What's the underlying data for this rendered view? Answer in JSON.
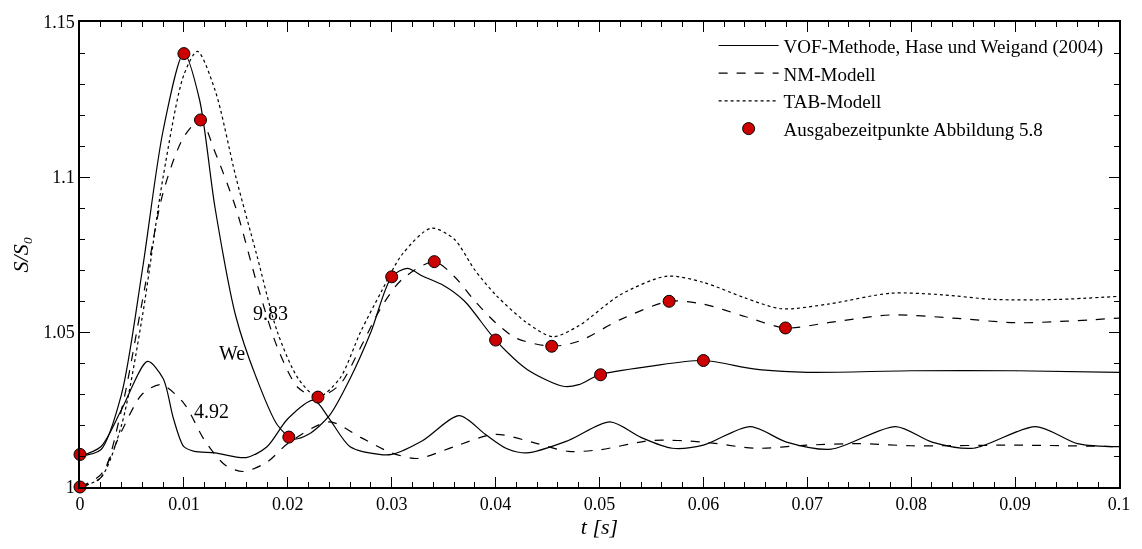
{
  "chart_data": {
    "type": "line",
    "xlabel": "t [s]",
    "ylabel": "S/S₀",
    "xlim": [
      0,
      0.1
    ],
    "xticks": [
      0,
      0.01,
      0.02,
      0.03,
      0.04,
      0.05,
      0.06,
      0.07,
      0.08,
      0.09,
      0.1
    ],
    "ylim": [
      1,
      1.15
    ],
    "yticks": [
      1,
      1.05,
      1.1,
      1.15
    ],
    "legend": "top right",
    "series": [
      {
        "name": "VOF-Methode, Hase und Weigand (2004)",
        "color": "#000000",
        "line_style": "solid",
        "marker": "none",
        "x": [
          0,
          0.002,
          0.004,
          0.006,
          0.008,
          0.01,
          0.0115,
          0.013,
          0.015,
          0.017,
          0.019,
          0.0205,
          0.022,
          0.024,
          0.026,
          0.028,
          0.03,
          0.0315,
          0.033,
          0.035,
          0.037,
          0.04,
          0.043,
          0.0465,
          0.048,
          0.05,
          0.055,
          0.06,
          0.065,
          0.07,
          0.08,
          0.09,
          0.1
        ],
        "values": [
          1.01,
          1.012,
          1.03,
          1.07,
          1.115,
          1.14,
          1.125,
          1.09,
          1.055,
          1.035,
          1.02,
          1.0155,
          1.017,
          1.023,
          1.035,
          1.05,
          1.0678,
          1.0705,
          1.068,
          1.065,
          1.06,
          1.0474,
          1.038,
          1.0325,
          1.033,
          1.0362,
          1.039,
          1.0408,
          1.038,
          1.037,
          1.0375,
          1.0375,
          1.037
        ]
      },
      {
        "name": "NM-Modell",
        "color": "#000000",
        "line_style": "dashed",
        "marker": "none",
        "x": [
          0,
          0.002,
          0.004,
          0.006,
          0.008,
          0.01,
          0.0116,
          0.013,
          0.015,
          0.017,
          0.019,
          0.021,
          0.0229,
          0.025,
          0.027,
          0.029,
          0.031,
          0.0341,
          0.036,
          0.038,
          0.04,
          0.042,
          0.0454,
          0.048,
          0.052,
          0.0567,
          0.06,
          0.064,
          0.0679,
          0.072,
          0.078,
          0.084,
          0.09,
          0.095,
          0.1
        ],
        "values": [
          1.0,
          1.003,
          1.025,
          1.06,
          1.095,
          1.113,
          1.1184,
          1.108,
          1.09,
          1.066,
          1.045,
          1.032,
          1.029,
          1.033,
          1.045,
          1.058,
          1.067,
          1.0727,
          1.068,
          1.06,
          1.053,
          1.048,
          1.0454,
          1.047,
          1.054,
          1.0599,
          1.059,
          1.055,
          1.0513,
          1.053,
          1.0555,
          1.0545,
          1.053,
          1.0535,
          1.0545
        ]
      },
      {
        "name": "TAB-Modell",
        "color": "#000000",
        "line_style": "dotted",
        "marker": "none",
        "x": [
          0,
          0.002,
          0.004,
          0.006,
          0.008,
          0.01,
          0.0113,
          0.013,
          0.015,
          0.017,
          0.019,
          0.021,
          0.0229,
          0.025,
          0.027,
          0.029,
          0.031,
          0.0338,
          0.036,
          0.038,
          0.04,
          0.043,
          0.0455,
          0.048,
          0.052,
          0.0565,
          0.06,
          0.064,
          0.0675,
          0.072,
          0.078,
          0.083,
          0.088,
          0.094,
          0.1
        ],
        "values": [
          1.0,
          1.003,
          1.02,
          1.055,
          1.1,
          1.133,
          1.1405,
          1.128,
          1.1,
          1.075,
          1.05,
          1.035,
          1.029,
          1.035,
          1.05,
          1.063,
          1.075,
          1.0835,
          1.08,
          1.07,
          1.062,
          1.053,
          1.0485,
          1.052,
          1.062,
          1.068,
          1.066,
          1.061,
          1.0575,
          1.059,
          1.0625,
          1.062,
          1.0605,
          1.0605,
          1.0615
        ]
      },
      {
        "color": "#000000",
        "line_style": "solid",
        "marker": "none",
        "x": [
          0,
          0.002,
          0.004,
          0.0065,
          0.008,
          0.009,
          0.01,
          0.011,
          0.013,
          0.016,
          0.018,
          0.02,
          0.0225,
          0.024,
          0.026,
          0.0288,
          0.03,
          0.033,
          0.0365,
          0.039,
          0.041,
          0.043,
          0.047,
          0.051,
          0.054,
          0.057,
          0.06,
          0.0645,
          0.068,
          0.0723,
          0.0785,
          0.082,
          0.086,
          0.092,
          0.096,
          0.1
        ],
        "values": [
          1.01,
          1.013,
          1.025,
          1.0405,
          1.035,
          1.022,
          1.013,
          1.0115,
          1.011,
          1.0095,
          1.013,
          1.022,
          1.028,
          1.022,
          1.013,
          1.0105,
          1.0105,
          1.015,
          1.023,
          1.017,
          1.0125,
          1.011,
          1.015,
          1.021,
          1.016,
          1.0125,
          1.0135,
          1.0195,
          1.0145,
          1.0122,
          1.0195,
          1.0145,
          1.0125,
          1.0195,
          1.014,
          1.013
        ]
      },
      {
        "color": "#000000",
        "line_style": "dashed",
        "marker": "none",
        "x": [
          0,
          0.002,
          0.004,
          0.006,
          0.0078,
          0.01,
          0.012,
          0.014,
          0.0157,
          0.018,
          0.02,
          0.024,
          0.027,
          0.03,
          0.0325,
          0.036,
          0.04,
          0.044,
          0.047,
          0.05,
          0.055,
          0.06,
          0.065,
          0.07,
          0.075,
          0.08,
          0.09,
          0.1
        ],
        "values": [
          1.0,
          1.004,
          1.018,
          1.03,
          1.033,
          1.027,
          1.015,
          1.007,
          1.005,
          1.008,
          1.014,
          1.021,
          1.016,
          1.011,
          1.0092,
          1.013,
          1.017,
          1.014,
          1.0115,
          1.012,
          1.015,
          1.0145,
          1.0125,
          1.0135,
          1.014,
          1.0133,
          1.0135,
          1.013
        ]
      },
      {
        "name": "Ausgabezeitpunkte Abbildung 5.8",
        "type": "scatter",
        "color": "#cc0000",
        "marker": "circle",
        "x": [
          0,
          0,
          0.01,
          0.0116,
          0.0201,
          0.0229,
          0.03,
          0.0341,
          0.04,
          0.0454,
          0.0501,
          0.0567,
          0.06,
          0.0679
        ],
        "values": [
          1.0105,
          1.0,
          1.1398,
          1.1184,
          1.0161,
          1.029,
          1.0678,
          1.0727,
          1.0474,
          1.0454,
          1.0362,
          1.0599,
          1.0408,
          1.0513
        ]
      }
    ],
    "annotations": [
      "9.83",
      "We",
      "4.92"
    ]
  }
}
